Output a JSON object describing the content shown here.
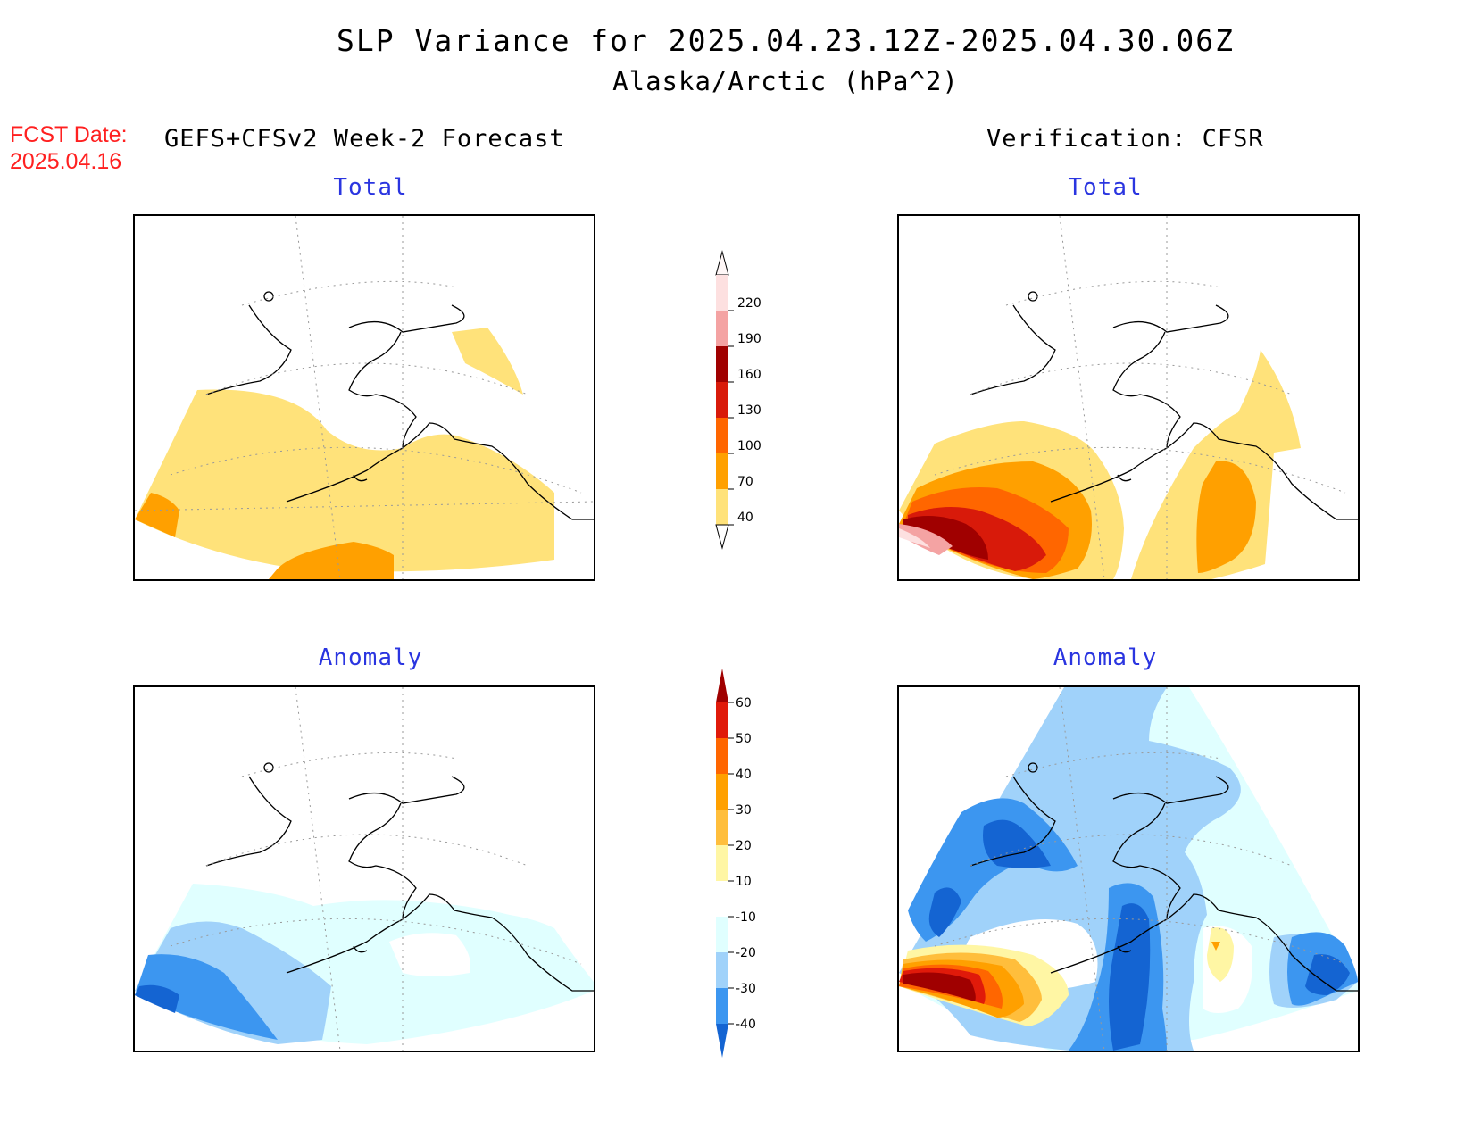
{
  "header": {
    "title": "SLP Variance for 2025.04.23.12Z-2025.04.30.06Z",
    "subtitle": "Alaska/Arctic (hPa^2)",
    "fcst_label": "FCST Date:",
    "fcst_date": "2025.04.16",
    "left_heading": "GEFS+CFSv2 Week-2 Forecast",
    "right_heading": "Verification: CFSR"
  },
  "panels": {
    "top_left": {
      "label": "Total"
    },
    "top_right": {
      "label": "Total"
    },
    "bottom_left": {
      "label": "Anomaly"
    },
    "bottom_right": {
      "label": "Anomaly"
    }
  },
  "colorbars": {
    "total": {
      "levels": [
        "220",
        "190",
        "160",
        "130",
        "100",
        "70",
        "40"
      ],
      "colors": [
        "#fde0e0",
        "#f4a3a3",
        "#a00000",
        "#d81a0a",
        "#ff6600",
        "#ffa000",
        "#ffe27a"
      ]
    },
    "anomaly": {
      "levels": [
        "60",
        "50",
        "40",
        "30",
        "20",
        "10",
        "-10",
        "-20",
        "-30",
        "-40"
      ],
      "colors": [
        "#a00000",
        "#e01a0a",
        "#ff6600",
        "#ffa000",
        "#ffbe3c",
        "#fff6a4",
        "#ffffff",
        "#e0ffff",
        "#a0d2fa",
        "#3c96f0",
        "#1464d2"
      ]
    }
  }
}
